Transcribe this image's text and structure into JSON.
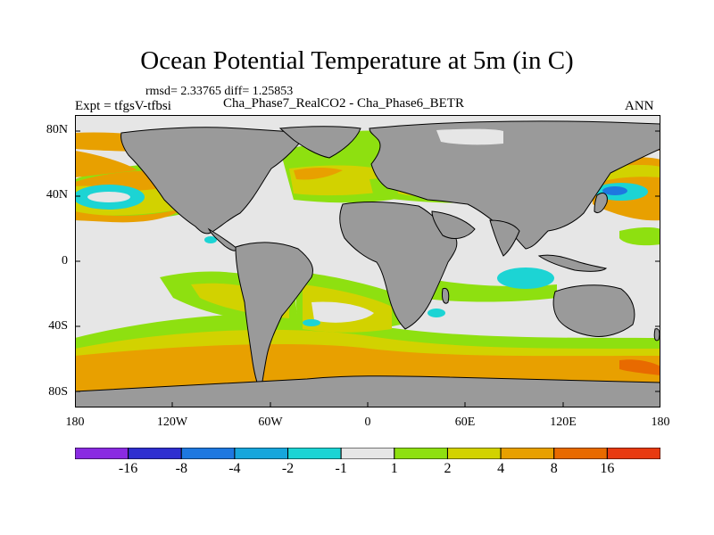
{
  "title": "Ocean Potential Temperature at 5m (in C)",
  "stats": "rmsd= 2.33765 diff= 1.25853",
  "expt": "Expt = tfgsV-tfbsi",
  "subtitle": "Cha_Phase7_RealCO2 - Cha_Phase6_BETR",
  "season": "ANN",
  "lat_ticks": [
    "80N",
    "40N",
    "0",
    "40S",
    "80S"
  ],
  "lon_ticks": [
    "180",
    "120W",
    "60W",
    "0",
    "60E",
    "120E",
    "180"
  ],
  "colorbar": {
    "labels": [
      "-16",
      "-8",
      "-4",
      "-2",
      "-1",
      "1",
      "2",
      "4",
      "8",
      "16"
    ],
    "colors": [
      "#8a2be2",
      "#2f2fd0",
      "#1e78e0",
      "#17a6dc",
      "#1cd4d4",
      "#e6e6e6",
      "#8ee010",
      "#d2d200",
      "#e8a000",
      "#e86a00",
      "#e83a10"
    ]
  },
  "colors": {
    "land": "#9a9a9a",
    "ocean_neutral": "#e6e6e6",
    "warm_1": "#8ee010",
    "warm_2": "#d2d200",
    "warm_3": "#e8a000",
    "warm_4": "#e86a00",
    "cool_1": "#1cd4d4",
    "cool_2": "#17a6dc"
  }
}
